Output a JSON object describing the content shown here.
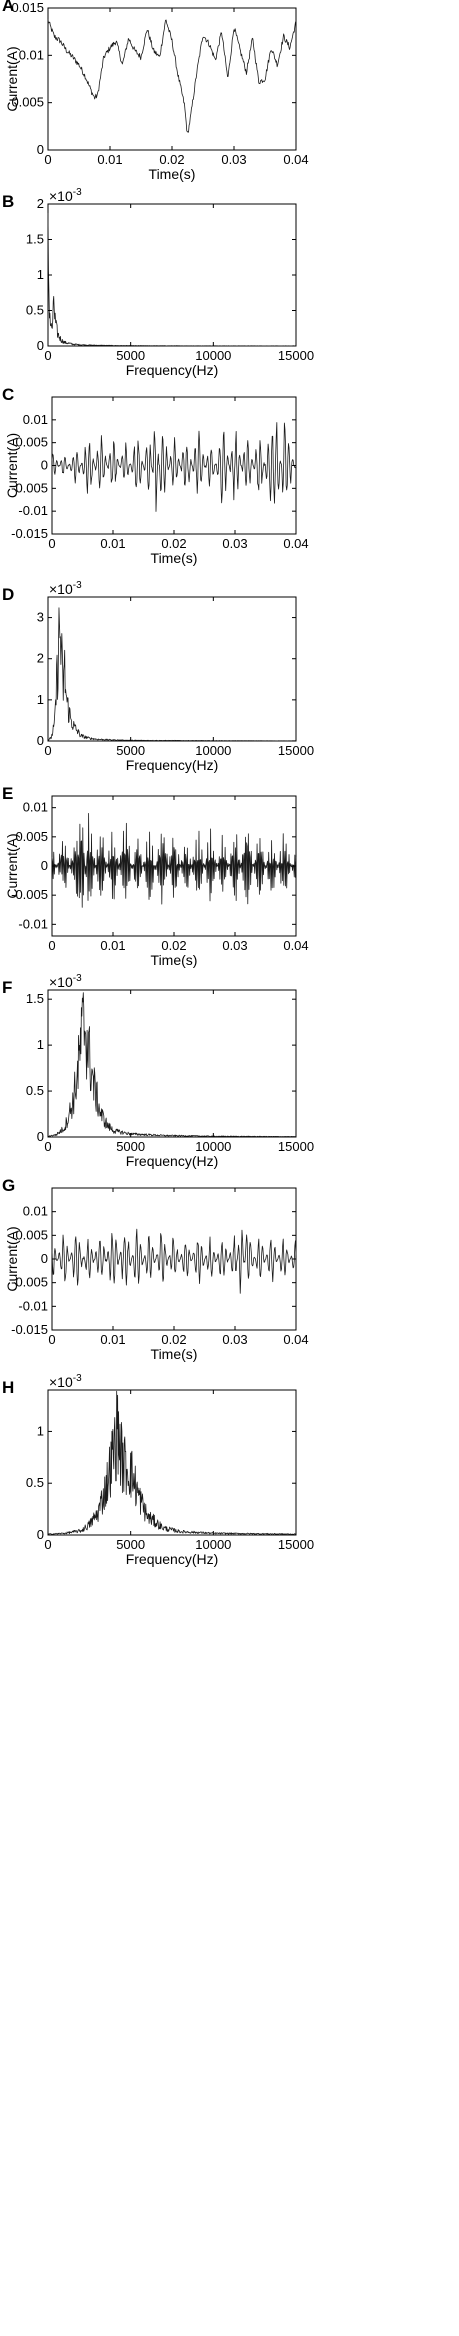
{
  "panels": [
    {
      "label": "A",
      "kind": "time",
      "xlabel": "Time(s)",
      "ylabel": "Current(A)",
      "xlim": [
        0,
        0.04
      ],
      "ylim": [
        0,
        0.015
      ],
      "xticks": [
        {
          "v": 0,
          "t": "0"
        },
        {
          "v": 0.01,
          "t": "0.01"
        },
        {
          "v": 0.02,
          "t": "0.02"
        },
        {
          "v": 0.03,
          "t": "0.03"
        },
        {
          "v": 0.04,
          "t": "0.04"
        }
      ],
      "yticks": [
        {
          "v": 0,
          "t": "0"
        },
        {
          "v": 0.005,
          "t": "0.005"
        },
        {
          "v": 0.01,
          "t": "0.01"
        },
        {
          "v": 0.015,
          "t": "0.015"
        }
      ],
      "exponent": ""
    },
    {
      "label": "B",
      "kind": "freq",
      "xlabel": "Frequency(Hz)",
      "ylabel": "",
      "xlim": [
        0,
        15000
      ],
      "ylim": [
        0,
        2
      ],
      "xticks": [
        {
          "v": 0,
          "t": "0"
        },
        {
          "v": 5000,
          "t": "5000"
        },
        {
          "v": 10000,
          "t": "10000"
        },
        {
          "v": 15000,
          "t": "15000"
        }
      ],
      "yticks": [
        {
          "v": 0,
          "t": "0"
        },
        {
          "v": 0.5,
          "t": "0.5"
        },
        {
          "v": 1,
          "t": "1"
        },
        {
          "v": 1.5,
          "t": "1.5"
        },
        {
          "v": 2,
          "t": "2"
        }
      ],
      "exponent": "-3"
    },
    {
      "label": "C",
      "kind": "time",
      "xlabel": "Time(s)",
      "ylabel": "Current(A)",
      "xlim": [
        0,
        0.04
      ],
      "ylim": [
        -0.015,
        0.015
      ],
      "xticks": [
        {
          "v": 0,
          "t": "0"
        },
        {
          "v": 0.01,
          "t": "0.01"
        },
        {
          "v": 0.02,
          "t": "0.02"
        },
        {
          "v": 0.03,
          "t": "0.03"
        },
        {
          "v": 0.04,
          "t": "0.04"
        }
      ],
      "yticks": [
        {
          "v": -0.015,
          "t": "-0.015"
        },
        {
          "v": -0.01,
          "t": "-0.01"
        },
        {
          "v": -0.005,
          "t": "-0.005"
        },
        {
          "v": 0,
          "t": "0"
        },
        {
          "v": 0.005,
          "t": "0.005"
        },
        {
          "v": 0.01,
          "t": "0.01"
        }
      ],
      "exponent": ""
    },
    {
      "label": "D",
      "kind": "freq",
      "xlabel": "Frequency(Hz)",
      "ylabel": "",
      "xlim": [
        0,
        15000
      ],
      "ylim": [
        0,
        3.5
      ],
      "xticks": [
        {
          "v": 0,
          "t": "0"
        },
        {
          "v": 5000,
          "t": "5000"
        },
        {
          "v": 10000,
          "t": "10000"
        },
        {
          "v": 15000,
          "t": "15000"
        }
      ],
      "yticks": [
        {
          "v": 0,
          "t": "0"
        },
        {
          "v": 1,
          "t": "1"
        },
        {
          "v": 2,
          "t": "2"
        },
        {
          "v": 3,
          "t": "3"
        }
      ],
      "exponent": "-3"
    },
    {
      "label": "E",
      "kind": "time",
      "xlabel": "Time(s)",
      "ylabel": "Current(A)",
      "xlim": [
        0,
        0.04
      ],
      "ylim": [
        -0.012,
        0.012
      ],
      "xticks": [
        {
          "v": 0,
          "t": "0"
        },
        {
          "v": 0.01,
          "t": "0.01"
        },
        {
          "v": 0.02,
          "t": "0.02"
        },
        {
          "v": 0.03,
          "t": "0.03"
        },
        {
          "v": 0.04,
          "t": "0.04"
        }
      ],
      "yticks": [
        {
          "v": -0.01,
          "t": "-0.01"
        },
        {
          "v": -0.005,
          "t": "-0.005"
        },
        {
          "v": 0,
          "t": "0"
        },
        {
          "v": 0.005,
          "t": "0.005"
        },
        {
          "v": 0.01,
          "t": "0.01"
        }
      ],
      "exponent": ""
    },
    {
      "label": "F",
      "kind": "freq",
      "xlabel": "Frequency(Hz)",
      "ylabel": "",
      "xlim": [
        0,
        15000
      ],
      "ylim": [
        0,
        1.6
      ],
      "xticks": [
        {
          "v": 0,
          "t": "0"
        },
        {
          "v": 5000,
          "t": "5000"
        },
        {
          "v": 10000,
          "t": "10000"
        },
        {
          "v": 15000,
          "t": "15000"
        }
      ],
      "yticks": [
        {
          "v": 0,
          "t": "0"
        },
        {
          "v": 0.5,
          "t": "0.5"
        },
        {
          "v": 1,
          "t": "1"
        },
        {
          "v": 1.5,
          "t": "1.5"
        }
      ],
      "exponent": "-3"
    },
    {
      "label": "G",
      "kind": "time",
      "xlabel": "Time(s)",
      "ylabel": "Current(A)",
      "xlim": [
        0,
        0.04
      ],
      "ylim": [
        -0.015,
        0.015
      ],
      "xticks": [
        {
          "v": 0,
          "t": "0"
        },
        {
          "v": 0.01,
          "t": "0.01"
        },
        {
          "v": 0.02,
          "t": "0.02"
        },
        {
          "v": 0.03,
          "t": "0.03"
        },
        {
          "v": 0.04,
          "t": "0.04"
        }
      ],
      "yticks": [
        {
          "v": -0.015,
          "t": "-0.015"
        },
        {
          "v": -0.01,
          "t": "-0.01"
        },
        {
          "v": -0.005,
          "t": "-0.005"
        },
        {
          "v": 0,
          "t": "0"
        },
        {
          "v": 0.005,
          "t": "0.005"
        },
        {
          "v": 0.01,
          "t": "0.01"
        }
      ],
      "exponent": ""
    },
    {
      "label": "H",
      "kind": "freq",
      "xlabel": "Frequency(Hz)",
      "ylabel": "",
      "xlim": [
        0,
        15000
      ],
      "ylim": [
        0,
        1.4
      ],
      "xticks": [
        {
          "v": 0,
          "t": "0"
        },
        {
          "v": 5000,
          "t": "5000"
        },
        {
          "v": 10000,
          "t": "10000"
        },
        {
          "v": 15000,
          "t": "15000"
        }
      ],
      "yticks": [
        {
          "v": 0,
          "t": "0"
        },
        {
          "v": 0.5,
          "t": "0.5"
        },
        {
          "v": 1,
          "t": "1"
        }
      ],
      "exponent": "-3"
    }
  ],
  "chart_data": [
    {
      "type": "line",
      "panel": "A",
      "xlabel": "Time(s)",
      "ylabel": "Current(A)",
      "xlim": [
        0,
        0.04
      ],
      "ylim": [
        0,
        0.015
      ],
      "grid": false,
      "x": [
        0,
        0.001,
        0.002,
        0.003,
        0.004,
        0.005,
        0.006,
        0.007,
        0.0075,
        0.008,
        0.009,
        0.01,
        0.011,
        0.012,
        0.013,
        0.014,
        0.015,
        0.016,
        0.017,
        0.018,
        0.019,
        0.02,
        0.021,
        0.022,
        0.0225,
        0.023,
        0.024,
        0.025,
        0.026,
        0.027,
        0.028,
        0.029,
        0.03,
        0.031,
        0.032,
        0.033,
        0.034,
        0.035,
        0.036,
        0.037,
        0.038,
        0.039,
        0.04
      ],
      "y": [
        0.0137,
        0.012,
        0.0115,
        0.0105,
        0.0098,
        0.009,
        0.0078,
        0.0062,
        0.0055,
        0.0058,
        0.0098,
        0.0108,
        0.0115,
        0.009,
        0.0118,
        0.0105,
        0.0098,
        0.0128,
        0.0105,
        0.0098,
        0.0138,
        0.0115,
        0.0078,
        0.0048,
        0.0015,
        0.0035,
        0.0082,
        0.0122,
        0.0112,
        0.0095,
        0.0125,
        0.0075,
        0.013,
        0.0105,
        0.0082,
        0.0118,
        0.0072,
        0.0075,
        0.0108,
        0.009,
        0.012,
        0.0108,
        0.0135
      ]
    },
    {
      "type": "line",
      "panel": "B",
      "xlabel": "Frequency(Hz)",
      "ylabel": "",
      "ylabel_multiplier": "x10^-3",
      "xlim": [
        0,
        15000
      ],
      "ylim": [
        0,
        2
      ],
      "grid": false,
      "x": [
        0,
        25,
        50,
        100,
        150,
        200,
        300,
        350,
        400,
        500,
        600,
        700,
        800,
        1000,
        1200,
        1500,
        2000,
        2500,
        3000,
        4000,
        5000,
        7000,
        10000,
        15000
      ],
      "y": [
        1.7,
        1.55,
        1.0,
        0.6,
        0.4,
        0.3,
        0.35,
        0.9,
        0.5,
        0.3,
        0.2,
        0.15,
        0.1,
        0.06,
        0.05,
        0.03,
        0.02,
        0.015,
        0.012,
        0.008,
        0.006,
        0.004,
        0.003,
        0.002
      ]
    },
    {
      "type": "line",
      "panel": "C",
      "xlabel": "Time(s)",
      "ylabel": "Current(A)",
      "xlim": [
        0,
        0.04
      ],
      "ylim": [
        -0.015,
        0.015
      ],
      "grid": false,
      "x": [
        0,
        0.002,
        0.004,
        0.006,
        0.008,
        0.01,
        0.012,
        0.014,
        0.016,
        0.017,
        0.018,
        0.02,
        0.022,
        0.024,
        0.026,
        0.028,
        0.03,
        0.032,
        0.034,
        0.036,
        0.037,
        0.038,
        0.04
      ],
      "y": [
        -0.004,
        0.003,
        -0.005,
        0.008,
        -0.008,
        0.007,
        -0.006,
        0.009,
        -0.01,
        0.014,
        -0.012,
        0.008,
        -0.008,
        0.009,
        -0.007,
        0.011,
        -0.01,
        0.009,
        -0.009,
        0.012,
        0.013,
        -0.013,
        0.002
      ]
    },
    {
      "type": "line",
      "panel": "D",
      "xlabel": "Frequency(Hz)",
      "ylabel": "",
      "ylabel_multiplier": "x10^-3",
      "xlim": [
        0,
        15000
      ],
      "ylim": [
        0,
        3.5
      ],
      "grid": false,
      "x": [
        0,
        200,
        400,
        600,
        700,
        800,
        900,
        1000,
        1100,
        1200,
        1400,
        1600,
        2000,
        2500,
        3000,
        4000,
        5000,
        7000,
        10000,
        15000
      ],
      "y": [
        0.02,
        0.1,
        0.5,
        2.4,
        3.3,
        2.7,
        1.5,
        2.1,
        1.3,
        1.0,
        0.6,
        0.4,
        0.15,
        0.08,
        0.05,
        0.03,
        0.02,
        0.015,
        0.01,
        0.005
      ]
    },
    {
      "type": "line",
      "panel": "E",
      "xlabel": "Time(s)",
      "ylabel": "Current(A)",
      "xlim": [
        0,
        0.04
      ],
      "ylim": [
        -0.012,
        0.012
      ],
      "grid": false,
      "x": [
        0,
        0.002,
        0.004,
        0.005,
        0.006,
        0.008,
        0.01,
        0.012,
        0.014,
        0.016,
        0.018,
        0.02,
        0.022,
        0.024,
        0.026,
        0.028,
        0.03,
        0.032,
        0.034,
        0.036,
        0.038,
        0.04
      ],
      "y": [
        0.004,
        -0.006,
        0.007,
        0.011,
        -0.01,
        0.008,
        -0.008,
        0.009,
        -0.007,
        0.008,
        -0.009,
        0.007,
        -0.006,
        0.008,
        -0.008,
        0.007,
        -0.008,
        0.009,
        -0.008,
        0.007,
        -0.007,
        0.004
      ]
    },
    {
      "type": "line",
      "panel": "F",
      "xlabel": "Frequency(Hz)",
      "ylabel": "",
      "ylabel_multiplier": "x10^-3",
      "xlim": [
        0,
        15000
      ],
      "ylim": [
        0,
        1.6
      ],
      "grid": false,
      "x": [
        0,
        500,
        1000,
        1500,
        1800,
        2000,
        2200,
        2500,
        2800,
        3200,
        3600,
        4000,
        5000,
        7000,
        10000,
        15000
      ],
      "y": [
        0.01,
        0.03,
        0.12,
        0.45,
        0.85,
        1.25,
        1.55,
        1.05,
        0.65,
        0.3,
        0.15,
        0.08,
        0.04,
        0.02,
        0.01,
        0.005
      ]
    },
    {
      "type": "line",
      "panel": "G",
      "xlabel": "Time(s)",
      "ylabel": "Current(A)",
      "xlim": [
        0,
        0.04
      ],
      "ylim": [
        -0.015,
        0.015
      ],
      "grid": false,
      "x": [
        0,
        0.002,
        0.004,
        0.006,
        0.008,
        0.01,
        0.012,
        0.014,
        0.016,
        0.018,
        0.02,
        0.022,
        0.024,
        0.026,
        0.028,
        0.03,
        0.031,
        0.032,
        0.034,
        0.036,
        0.038,
        0.04
      ],
      "y": [
        0.006,
        -0.007,
        0.008,
        -0.006,
        0.007,
        -0.009,
        0.009,
        -0.008,
        0.007,
        -0.007,
        0.006,
        -0.006,
        0.007,
        -0.006,
        0.006,
        -0.007,
        0.011,
        -0.009,
        0.006,
        -0.006,
        0.006,
        -0.005
      ]
    },
    {
      "type": "line",
      "panel": "H",
      "xlabel": "Frequency(Hz)",
      "ylabel": "",
      "ylabel_multiplier": "x10^-3",
      "xlim": [
        0,
        15000
      ],
      "ylim": [
        0,
        1.4
      ],
      "grid": false,
      "x": [
        0,
        1000,
        2000,
        2500,
        3000,
        3500,
        4000,
        4200,
        4500,
        5000,
        5500,
        6000,
        7000,
        8000,
        10000,
        15000
      ],
      "y": [
        0.01,
        0.02,
        0.05,
        0.12,
        0.25,
        0.55,
        1.0,
        1.25,
        0.85,
        0.75,
        0.45,
        0.22,
        0.08,
        0.04,
        0.02,
        0.01
      ]
    }
  ]
}
